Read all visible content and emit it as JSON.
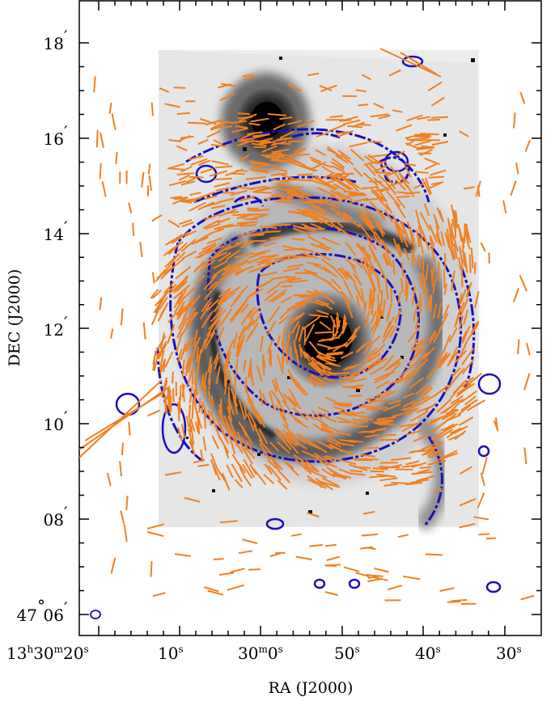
{
  "figure": {
    "xlabel": "RA (J2000)",
    "ylabel": "DEC (J2000)",
    "x_ticks": [
      {
        "h": "13",
        "m": "30",
        "s": "20",
        "pre": "h",
        "mid": "m",
        "post": "s"
      },
      {
        "text": "10",
        "post": "s"
      },
      {
        "h": "",
        "m": "30",
        "s": "0",
        "pre": "",
        "mid": "m",
        "post": "s"
      },
      {
        "text": "50",
        "post": "s"
      },
      {
        "text": "40",
        "post": "s"
      },
      {
        "text": "30",
        "post": "s"
      }
    ],
    "y_ticks": [
      {
        "text": "18",
        "post": "′"
      },
      {
        "text": "16",
        "post": "′"
      },
      {
        "text": "14",
        "post": "′"
      },
      {
        "text": "12",
        "post": "′"
      },
      {
        "text": "10",
        "post": "′"
      },
      {
        "text": "08",
        "post": "′"
      },
      {
        "deg": "47",
        "text": "06",
        "post": "′"
      }
    ],
    "colors": {
      "vectors": "#f08020",
      "contours": "#1a10b8",
      "image": "#000000",
      "frame": "#000000"
    },
    "overlay": {
      "image": "grayscale galaxy intensity map",
      "vectors": "orange polarization vectors",
      "contours": "blue polarized intensity contours",
      "beam": "blue ellipse"
    }
  }
}
